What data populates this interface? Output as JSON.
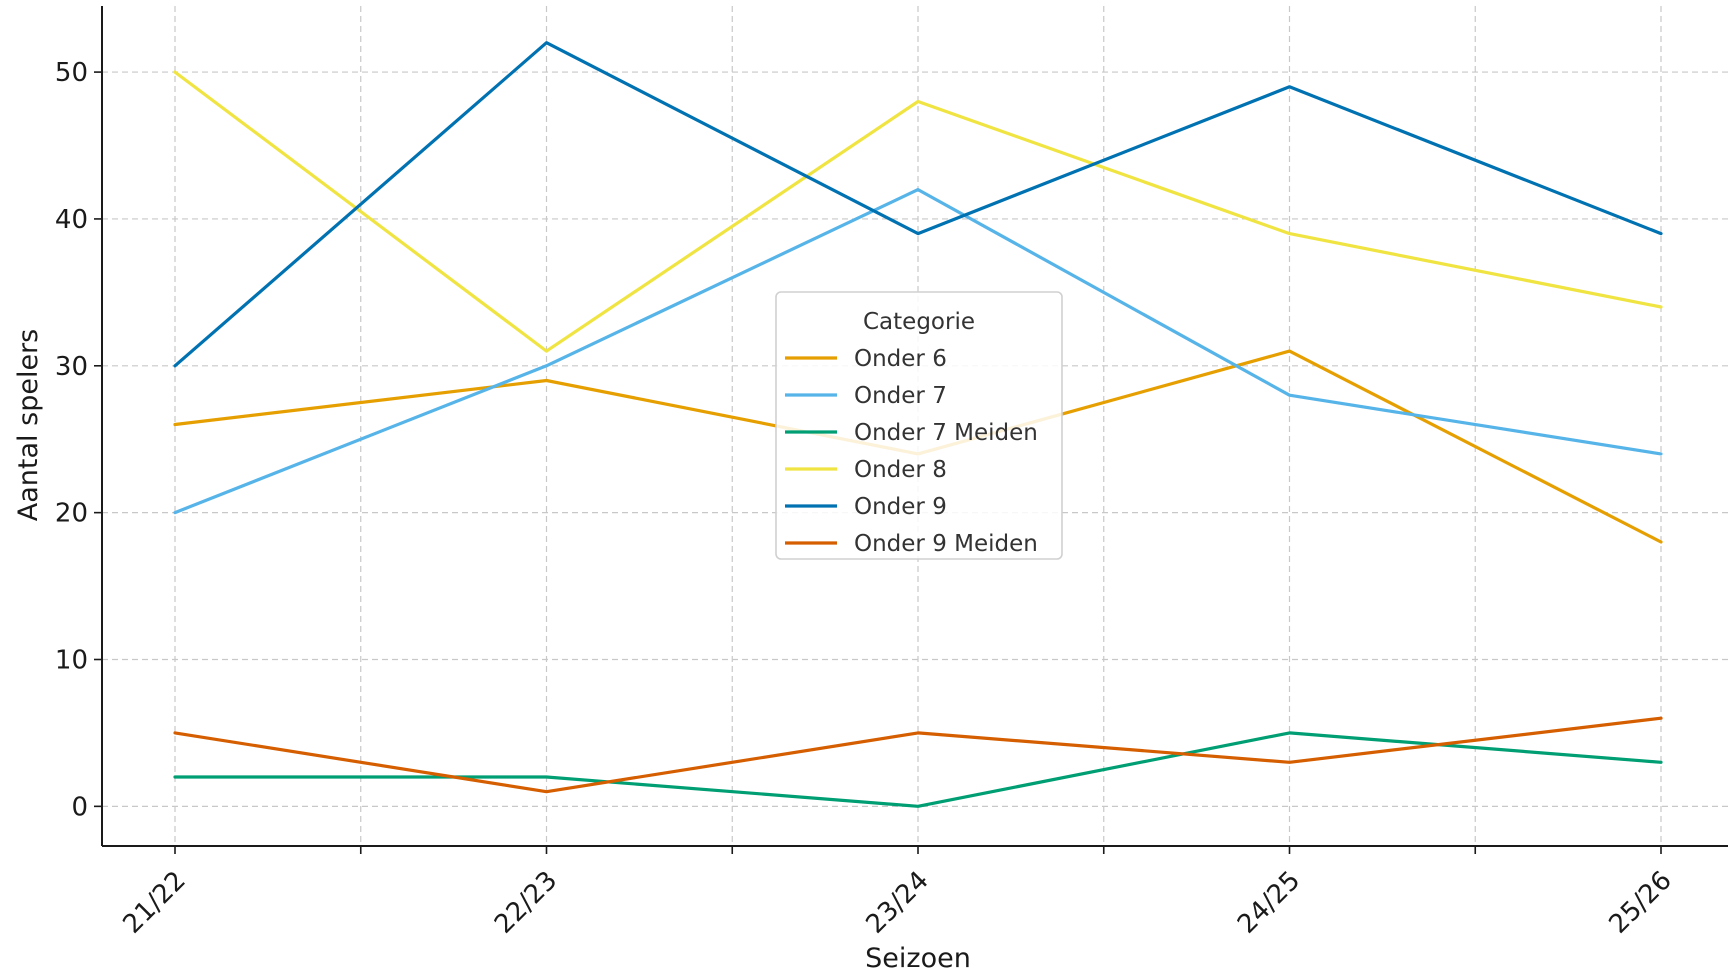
{
  "chart_data": {
    "type": "line",
    "title": "",
    "xlabel": "Seizoen",
    "ylabel": "Aantal spelers",
    "categories": [
      "21/22",
      "22/23",
      "23/24",
      "24/25",
      "25/26"
    ],
    "ylim": [
      -2.7,
      54.5
    ],
    "yticks": [
      0,
      10,
      20,
      30,
      40,
      50
    ],
    "grid": true,
    "legend": {
      "title": "Categorie",
      "placement": "center"
    },
    "series": [
      {
        "name": "Onder 6",
        "color": "#E69F00",
        "values": [
          26,
          29,
          24,
          31,
          18
        ]
      },
      {
        "name": "Onder 7",
        "color": "#56B4E9",
        "values": [
          20,
          30,
          42,
          28,
          24
        ]
      },
      {
        "name": "Onder 7 Meiden",
        "color": "#009E73",
        "values": [
          2,
          2,
          0,
          5,
          3
        ]
      },
      {
        "name": "Onder 8",
        "color": "#F0E442",
        "values": [
          50,
          31,
          48,
          39,
          34
        ]
      },
      {
        "name": "Onder 9",
        "color": "#0072B2",
        "values": [
          30,
          52,
          39,
          49,
          39
        ]
      },
      {
        "name": "Onder 9 Meiden",
        "color": "#D55E00",
        "values": [
          5,
          1,
          5,
          3,
          6
        ]
      }
    ]
  }
}
